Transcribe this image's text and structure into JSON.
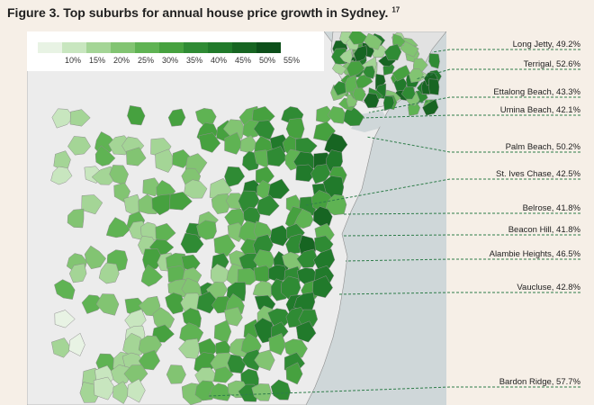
{
  "title": "Figure 3. Top suburbs for annual house price growth in Sydney.",
  "title_footnote": "17",
  "colors": {
    "background": "#f6efe7",
    "ocean": "#cfd7d9",
    "land_no_data": "#ececec",
    "border": "#8e8e8e",
    "leader": "#2f7d4a"
  },
  "legend": {
    "labels": [
      "10%",
      "15%",
      "20%",
      "25%",
      "30%",
      "35%",
      "40%",
      "45%",
      "50%",
      "55%"
    ],
    "colors": [
      "#e8f3e4",
      "#c8e6bf",
      "#a4d596",
      "#82c472",
      "#5fb353",
      "#46a13f",
      "#2f8b34",
      "#217a2b",
      "#176522",
      "#0d4f1a"
    ]
  },
  "callouts": [
    {
      "suburb": "Long Jetty",
      "growth": "49.2%",
      "label": "Long Jetty, 49.2%"
    },
    {
      "suburb": "Terrigal",
      "growth": "52.6%",
      "label": "Terrigal, 52.6%"
    },
    {
      "suburb": "Ettalong Beach",
      "growth": "43.3%",
      "label": "Ettalong Beach, 43.3%"
    },
    {
      "suburb": "Umina Beach",
      "growth": "42.1%",
      "label": "Umina Beach, 42.1%"
    },
    {
      "suburb": "Palm Beach",
      "growth": "50.2%",
      "label": "Palm Beach, 50.2%"
    },
    {
      "suburb": "St. Ives Chase",
      "growth": "42.5%",
      "label": "St. Ives Chase, 42.5%"
    },
    {
      "suburb": "Belrose",
      "growth": "41.8%",
      "label": "Belrose, 41.8%"
    },
    {
      "suburb": "Beacon Hill",
      "growth": "41.8%",
      "label": "Beacon Hill, 41.8%"
    },
    {
      "suburb": "Alambie Heights",
      "growth": "46.5%",
      "label": "Alambie Heights, 46.5%"
    },
    {
      "suburb": "Vaucluse",
      "growth": "42.8%",
      "label": "Vaucluse, 42.8%"
    },
    {
      "suburb": "Bardon Ridge",
      "growth": "57.7%",
      "label": "Bardon Ridge, 57.7%"
    }
  ]
}
